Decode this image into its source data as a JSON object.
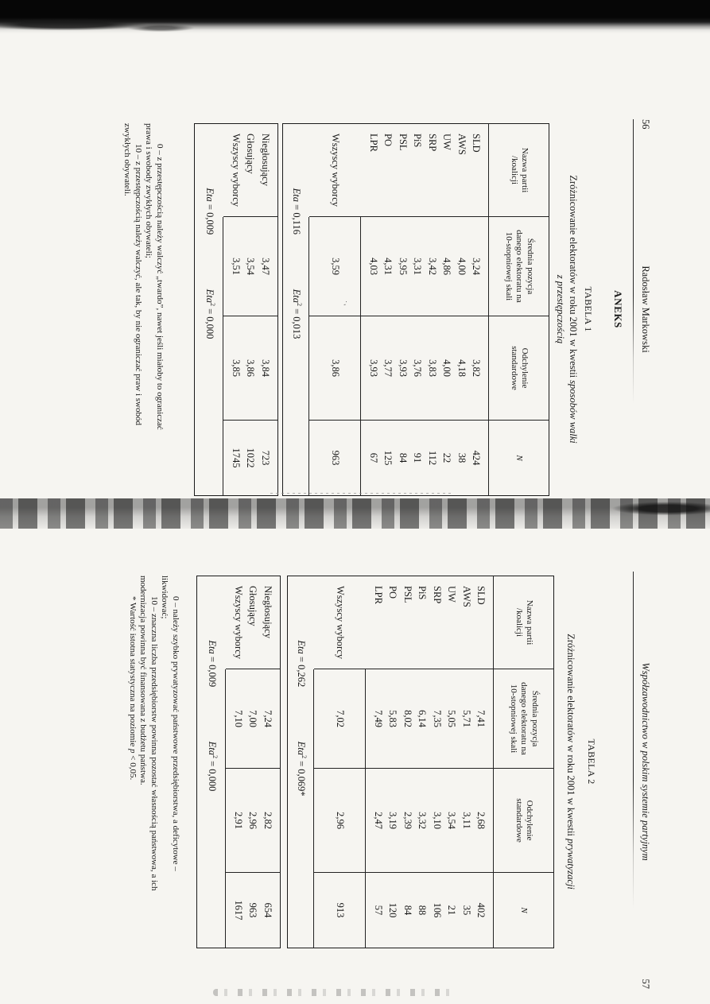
{
  "pages": [
    {
      "page_number": "56",
      "running_title": "Radosław Markowski",
      "section_heading": "ANEKS",
      "table_label": "TABELA 1",
      "caption_line1_roman": "Zróżnicowanie elektoratów w roku 2001 w kwestii ",
      "caption_line1_italic": "sposobów walki",
      "caption_line2_italic": "z przestępczością",
      "main_table": {
        "col_headers": {
          "c1": [
            "Nazwa partii",
            "/koalicji"
          ],
          "c2": [
            "Średnia pozycja",
            "danego elektoratu na",
            "10-stopniowej skali"
          ],
          "c3": [
            "Odchylenie",
            "standardowe"
          ],
          "c4": "N"
        },
        "rows": [
          [
            "SLD",
            "3,24",
            "3,82",
            "424"
          ],
          [
            "AWS",
            "4,00",
            "4,18",
            "38"
          ],
          [
            "UW",
            "4,86",
            "4,00",
            "22"
          ],
          [
            "SRP",
            "3,42",
            "3,83",
            "112"
          ],
          [
            "PiS",
            "3,31",
            "3,76",
            "91"
          ],
          [
            "PSL",
            "3,95",
            "3,93",
            "84"
          ],
          [
            "PO",
            "4,31",
            "3,77",
            "125"
          ],
          [
            "LPR",
            "4,03",
            "3,93",
            "67"
          ]
        ],
        "total_row": [
          "Wszyscy wyborcy",
          "3,59",
          "3,86",
          "963"
        ],
        "eta_label": "Eta",
        "eta_value": " = 0,116",
        "eta2_label": "Eta",
        "eta2_sup": "2",
        "eta2_value": " = 0,013"
      },
      "voters_table": {
        "rows": [
          [
            "Niegłosujący",
            "3,47",
            "3,84",
            "723"
          ],
          [
            "Głosujący",
            "3,54",
            "3,86",
            "1022"
          ],
          [
            "Wszyscy wyborcy",
            "3,51",
            "3,85",
            "1745"
          ]
        ],
        "eta_label": "Eta",
        "eta_value": " = 0,009",
        "eta2_label": "Eta",
        "eta2_sup": "2",
        "eta2_value": " = 0,000"
      },
      "footnote_lines": [
        "0 – z przestępczością należy walczyć „twardo”, nawet jeśli miałoby to ograniczać",
        "prawa i swobody zwykłych obywateli;",
        "10 – z przestępczością należy walczyć, ale tak, by nie ograniczać praw i swobód",
        "zwykłych obywateli."
      ]
    },
    {
      "page_number": "57",
      "running_title": "Współzawodnictwo w polskim systemie partyjnym",
      "table_label": "TABELA 2",
      "caption_line1_roman": "Zróżnicowanie elektoratów w roku 2001 w kwestii ",
      "caption_line1_italic": "prywatyzacji",
      "main_table": {
        "col_headers": {
          "c1": [
            "Nazwa partii",
            "/koalicji"
          ],
          "c2": [
            "Średnia pozycja",
            "danego elektoratu na",
            "10-stopniowej skali"
          ],
          "c3": [
            "Odchylenie",
            "standardowe"
          ],
          "c4": "N"
        },
        "rows": [
          [
            "SLD",
            "7,41",
            "2,68",
            "402"
          ],
          [
            "AWS",
            "5,71",
            "3,11",
            "35"
          ],
          [
            "UW",
            "5,05",
            "3,54",
            "21"
          ],
          [
            "SRP",
            "7,35",
            "3,10",
            "106"
          ],
          [
            "PiS",
            "6,14",
            "3,32",
            "88"
          ],
          [
            "PSL",
            "8,02",
            "2,39",
            "84"
          ],
          [
            "PO",
            "5,83",
            "3,19",
            "120"
          ],
          [
            "LPR",
            "7,49",
            "2,47",
            "57"
          ]
        ],
        "total_row": [
          "Wszyscy wyborcy",
          "7,02",
          "2,96",
          "913"
        ],
        "eta_label": "Eta",
        "eta_value": " = 0,262",
        "eta2_label": "Eta",
        "eta2_sup": "2",
        "eta2_value": " = 0,069*"
      },
      "voters_table": {
        "rows": [
          [
            "Niegłosujący",
            "7,24",
            "2,82",
            "654"
          ],
          [
            "Głosujący",
            "7,00",
            "2,96",
            "963"
          ],
          [
            "Wszyscy wyborcy",
            "7,10",
            "2,91",
            "1617"
          ]
        ],
        "eta_label": "Eta",
        "eta_value": " = 0,009",
        "eta2_label": "Eta",
        "eta2_sup": "2",
        "eta2_value": " = 0,000"
      },
      "footnote_lines": [
        "0 – należy szybko prywatyzować państwowe przedsiębiorstwa, a deficytowe –",
        "likwidować;",
        "10 – znaczna liczba przedsiębiorstw powinna pozostać własnością państwowa, a ich",
        "modernizacja powinna być finansowana z budżetu państwa."
      ],
      "footnote_star": {
        "pre": "* Wartość istotna statystyczna na poziomie ",
        "p": "p",
        "post": " < 0,05."
      }
    }
  ]
}
